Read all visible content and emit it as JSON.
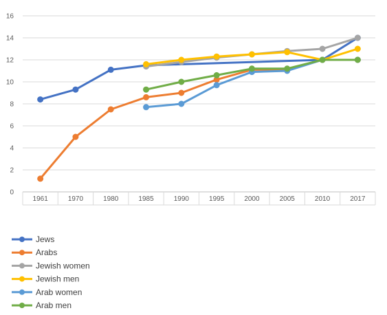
{
  "chart_data": {
    "type": "line",
    "title": "",
    "xlabel": "",
    "ylabel": "",
    "categories": [
      "1961",
      "1970",
      "1980",
      "1985",
      "1990",
      "1995",
      "2000",
      "2005",
      "2010",
      "2017"
    ],
    "ylim": [
      0,
      16
    ],
    "yticks": [
      "0",
      "2",
      "4",
      "6",
      "8",
      "10",
      "12",
      "14",
      "16"
    ],
    "grid": true,
    "legend_position": "bottom-left",
    "series": [
      {
        "name": "Jews",
        "color": "#4472C4",
        "values": [
          8.4,
          9.3,
          11.1,
          11.5,
          null,
          null,
          null,
          null,
          12.0,
          14.0
        ]
      },
      {
        "name": "Arabs",
        "color": "#ED7D31",
        "values": [
          1.2,
          5.0,
          7.5,
          8.6,
          9.0,
          10.2,
          11.1,
          11.1,
          12.0,
          12.0
        ]
      },
      {
        "name": "Jewish women",
        "color": "#A5A5A5",
        "values": [
          null,
          null,
          null,
          11.4,
          11.8,
          12.2,
          12.5,
          12.8,
          13.0,
          14.0
        ]
      },
      {
        "name": "Jewish men",
        "color": "#FFC000",
        "values": [
          null,
          null,
          null,
          11.6,
          12.0,
          12.3,
          12.5,
          12.7,
          12.0,
          13.0
        ]
      },
      {
        "name": "Arab women",
        "color": "#5B9BD5",
        "values": [
          null,
          null,
          null,
          7.7,
          8.0,
          9.7,
          10.9,
          11.0,
          12.0,
          12.0
        ]
      },
      {
        "name": "Arab men",
        "color": "#70AD47",
        "values": [
          null,
          null,
          null,
          9.3,
          10.0,
          10.6,
          11.2,
          11.2,
          12.0,
          12.0
        ]
      }
    ]
  }
}
